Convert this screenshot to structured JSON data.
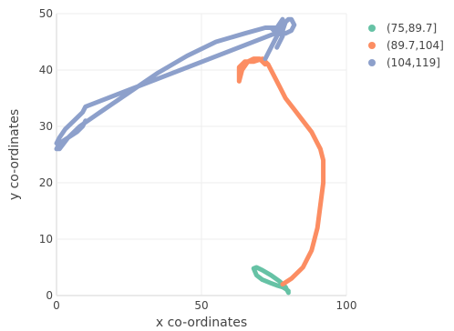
{
  "chart_data": {
    "type": "line",
    "xlabel": "x co-ordinates",
    "ylabel": "y co-ordinates",
    "xlim": [
      0,
      100
    ],
    "ylim": [
      0,
      50
    ],
    "x_ticks": [
      0,
      50,
      100
    ],
    "y_ticks": [
      0,
      10,
      20,
      30,
      40,
      50
    ],
    "grid": true,
    "legend_position": "top-right",
    "series": [
      {
        "name": "(75,89.7]",
        "color": "#66c2a5",
        "x": [
          80,
          79,
          77,
          74,
          71,
          69,
          68,
          69,
          71,
          74,
          76,
          78,
          79,
          80
        ],
        "y": [
          0.5,
          1.5,
          2.5,
          3.6,
          4.5,
          5.0,
          4.8,
          3.6,
          2.8,
          2.2,
          1.8,
          1.5,
          1.2,
          0.8
        ]
      },
      {
        "name": "(89.7,104]",
        "color": "#fc8d62",
        "x": [
          78,
          81,
          85,
          88,
          90,
          91,
          92,
          92,
          91,
          90,
          88,
          85,
          82,
          79,
          77,
          75,
          73,
          71,
          68,
          65,
          63,
          63,
          64,
          66,
          68,
          70,
          72
        ],
        "y": [
          2,
          3,
          5,
          8,
          12,
          16,
          20,
          24,
          26,
          27,
          29,
          31,
          33,
          35,
          37,
          39,
          41,
          42,
          41.5,
          41.5,
          40.5,
          38,
          40,
          41.5,
          42,
          42,
          41
        ]
      },
      {
        "name": "(104,119]",
        "color": "#8da0cb",
        "x": [
          72,
          74,
          76,
          77,
          78,
          76,
          72,
          65,
          55,
          45,
          35,
          25,
          15,
          8,
          4,
          1,
          0,
          1,
          4,
          7,
          9,
          10,
          9,
          7,
          4,
          1,
          0,
          1,
          3,
          6,
          9,
          10,
          78,
          79,
          80,
          81,
          82,
          81,
          79,
          77,
          75,
          74,
          75,
          77,
          78,
          76
        ],
        "y": [
          42,
          44,
          46,
          48,
          49,
          47.5,
          47.5,
          46.5,
          45,
          42.5,
          39.5,
          36,
          32.5,
          30,
          28,
          26,
          26,
          27,
          28,
          29,
          30,
          31,
          30,
          29,
          28,
          27,
          27,
          28,
          29.5,
          31,
          32.5,
          33.5,
          47,
          48.5,
          49,
          49,
          48,
          47,
          46.5,
          47,
          47.5,
          47.5,
          47,
          46.5,
          46,
          44
        ]
      }
    ]
  }
}
